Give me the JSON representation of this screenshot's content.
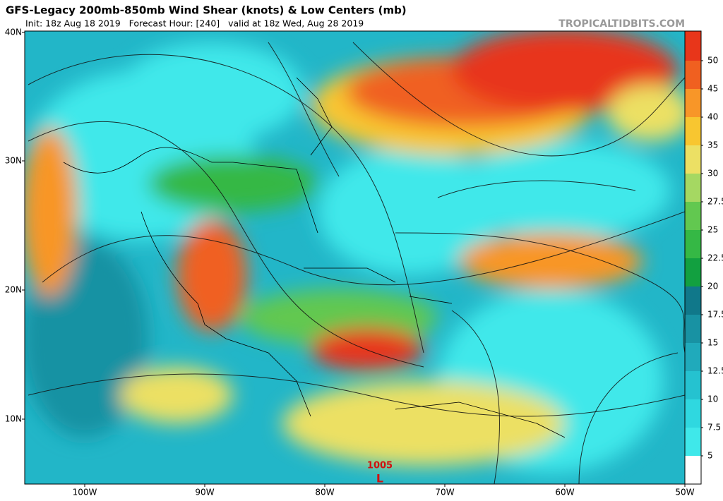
{
  "header": {
    "title": "GFS-Legacy 200mb-850mb Wind Shear (knots) & Low Centers (mb)",
    "subtitle": "Init: 18z Aug 18 2019   Forecast Hour: [240]   valid at 18z Wed, Aug 28 2019",
    "credit": "TROPICALTIDBITS.COM"
  },
  "map": {
    "lat_labels": [
      "40N",
      "30N",
      "20N",
      "10N"
    ],
    "lon_labels": [
      "100W",
      "90W",
      "80W",
      "70W",
      "60W",
      "50W"
    ],
    "low_centers": [
      {
        "pressure": 1005,
        "symbol": "L"
      }
    ]
  },
  "colorbar": {
    "levels": [
      5,
      7.5,
      10,
      12.5,
      15,
      17.5,
      20,
      22.5,
      25,
      27.5,
      30,
      35,
      40,
      45,
      50
    ],
    "colors": [
      "#ffffff",
      "#3fe8ea",
      "#2fd8e0",
      "#25c2d0",
      "#20aabb",
      "#1892a3",
      "#10788a",
      "#12a040",
      "#35b845",
      "#62c850",
      "#a5d862",
      "#ece064",
      "#f8c630",
      "#f89628",
      "#f06020",
      "#e8361a"
    ]
  }
}
